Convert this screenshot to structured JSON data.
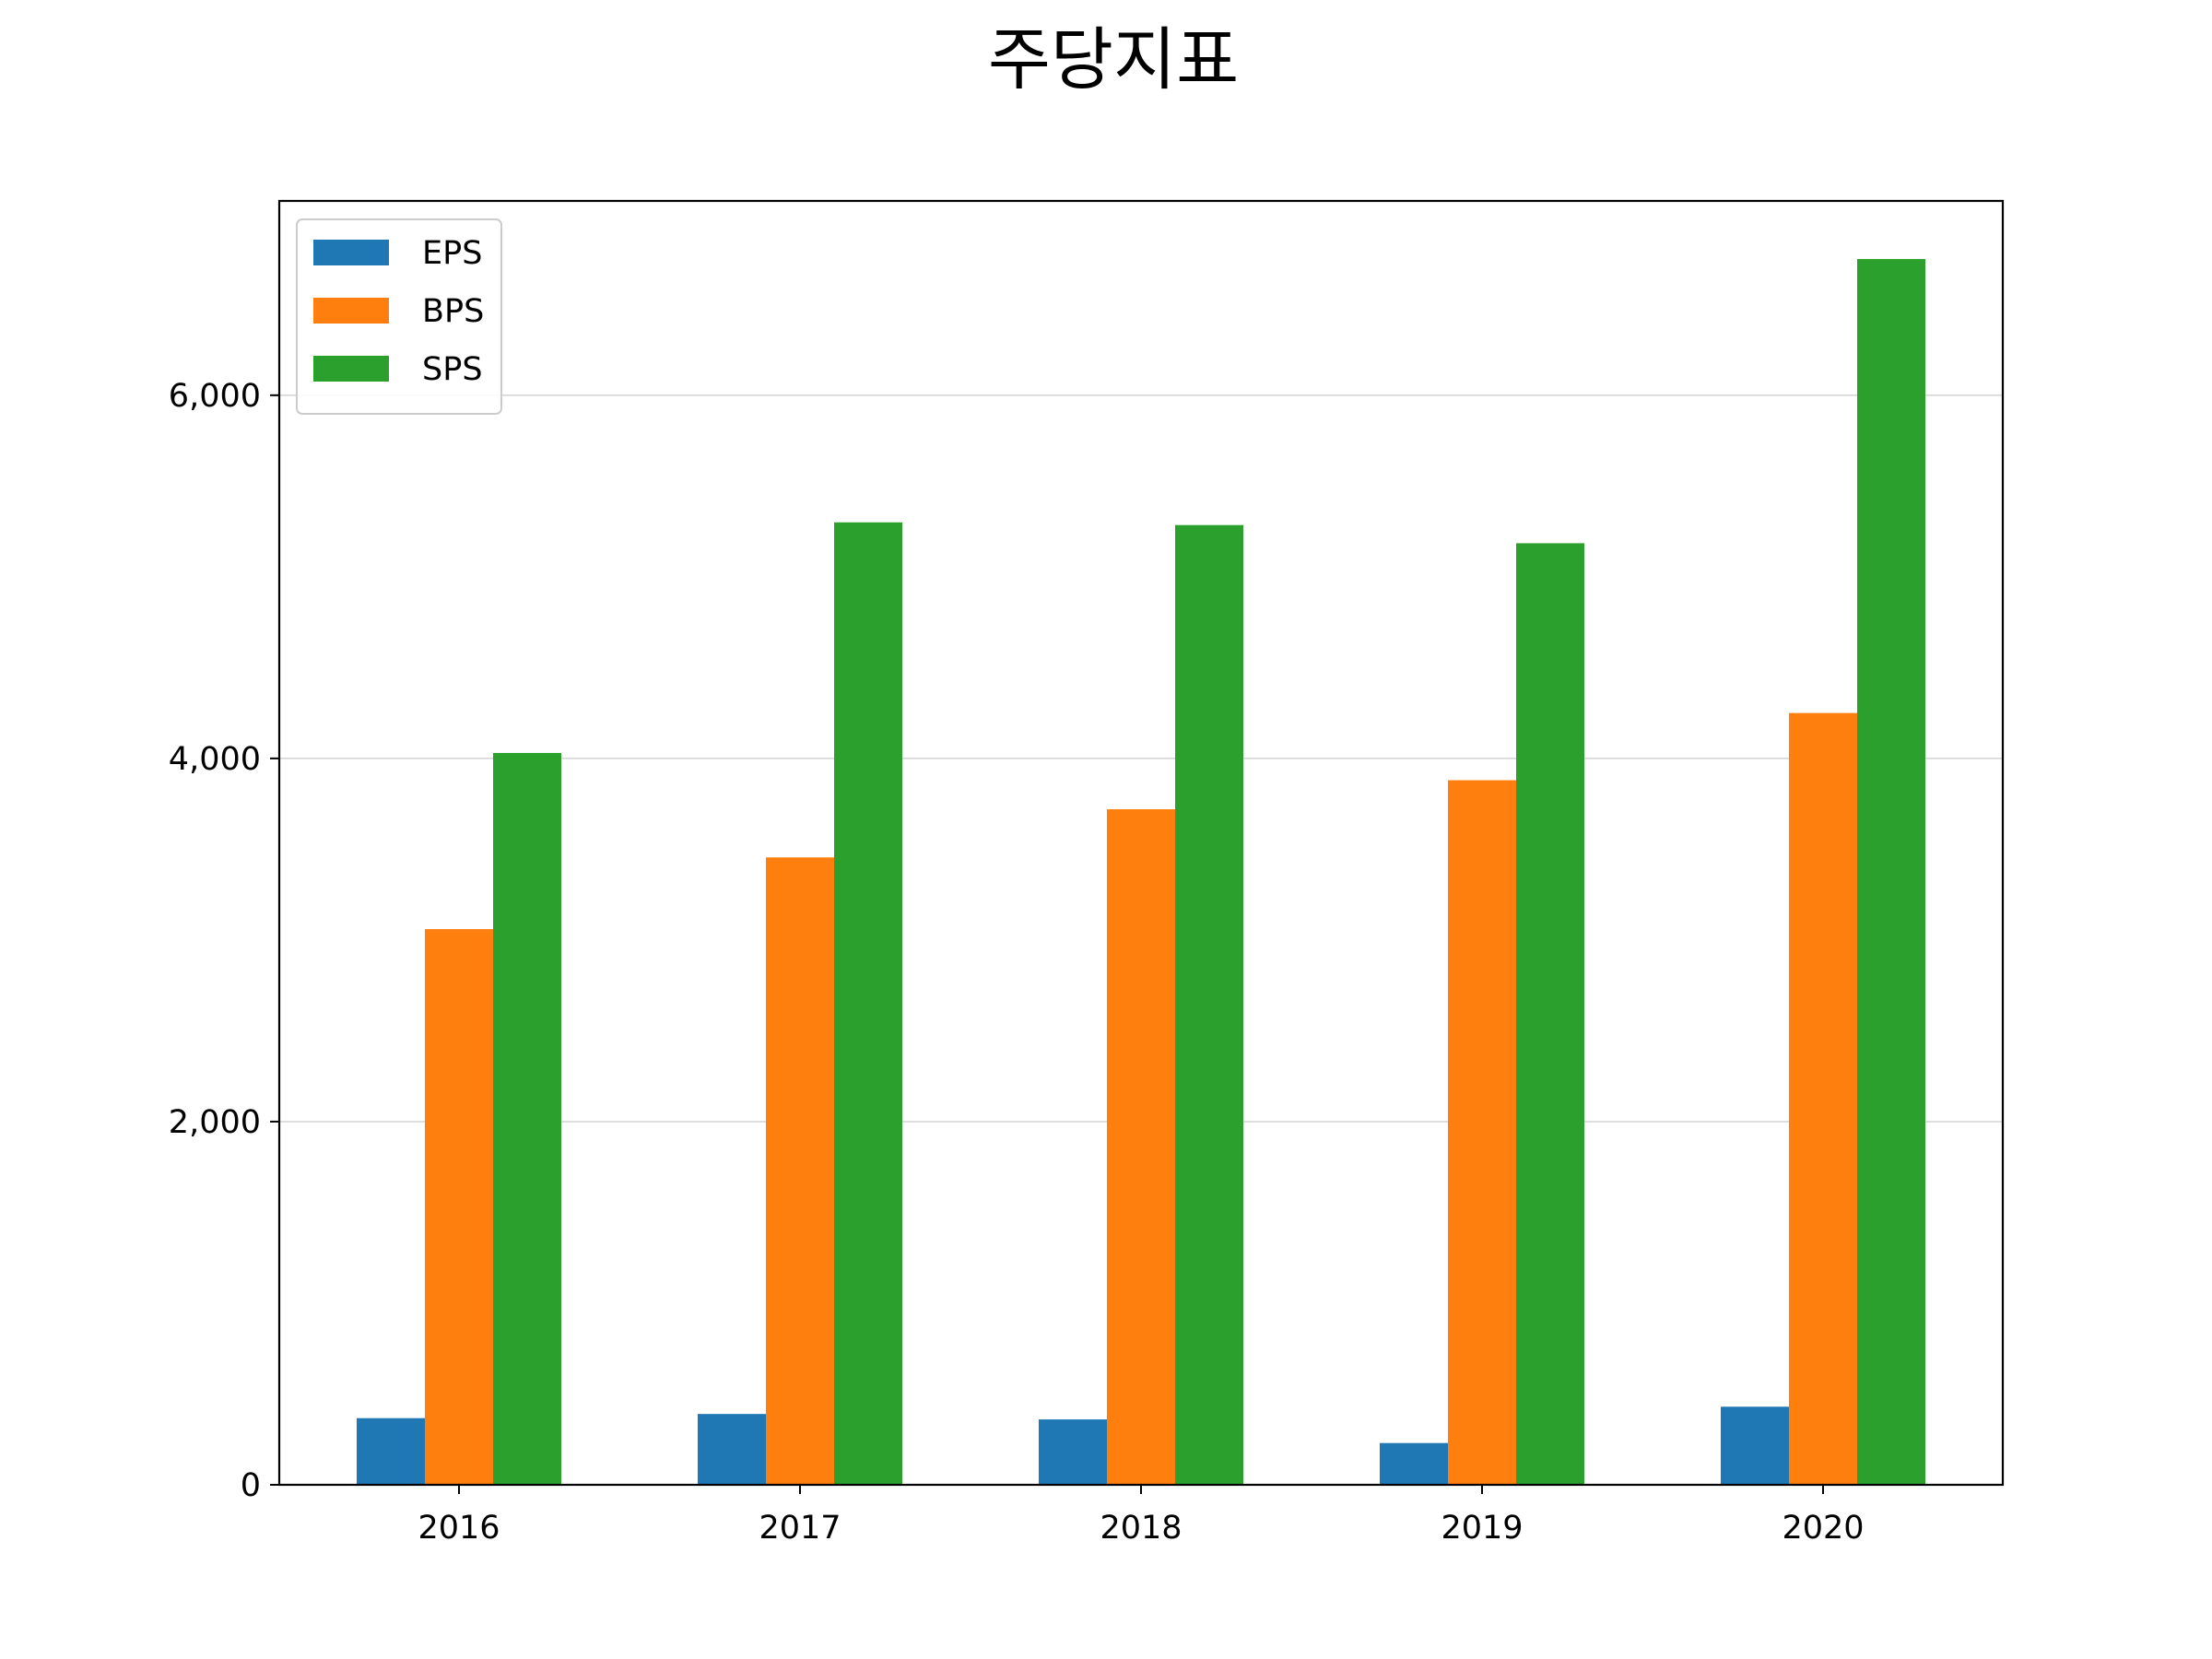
{
  "chart_data": {
    "type": "bar",
    "title": "주당지표",
    "xlabel": "",
    "ylabel": "",
    "categories": [
      "2016",
      "2017",
      "2018",
      "2019",
      "2020"
    ],
    "series": [
      {
        "name": "EPS",
        "color": "#1f77b4",
        "values": [
          367,
          390,
          360,
          230,
          430
        ]
      },
      {
        "name": "BPS",
        "color": "#ff7f0e",
        "values": [
          3060,
          3455,
          3720,
          3880,
          4250
        ]
      },
      {
        "name": "SPS",
        "color": "#2ca02c",
        "values": [
          4030,
          5300,
          5285,
          5185,
          6750
        ]
      }
    ],
    "ylim": [
      0,
      7070
    ],
    "yticks": [
      0,
      2000,
      4000,
      6000
    ],
    "ytick_labels": [
      "0",
      "2,000",
      "4,000",
      "6,000"
    ],
    "grid": {
      "y": true,
      "x": false,
      "color": "#d3d3d3"
    },
    "legend_position": "upper-left"
  }
}
